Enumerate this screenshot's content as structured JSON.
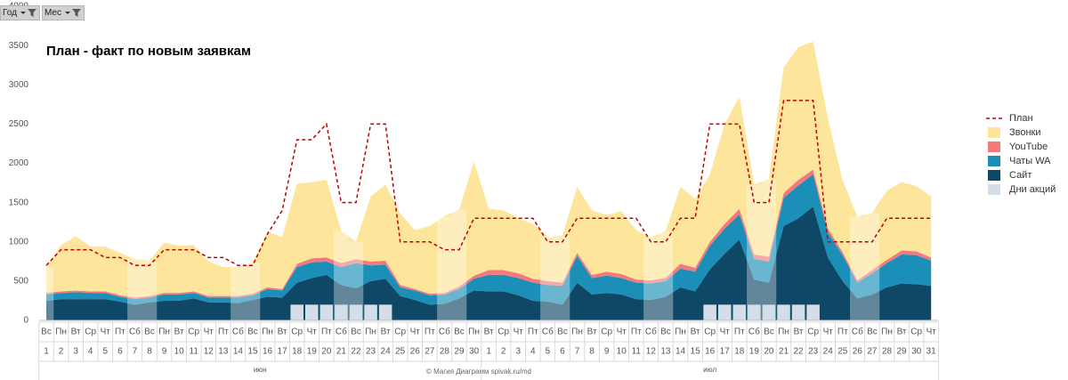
{
  "filters": [
    "Год",
    "Мес"
  ],
  "footer": "© Магия Диаграмм spivak.ru/md",
  "chart_data": {
    "type": "area",
    "title": "План - факт по новым заявкам",
    "months": [
      "июн",
      "июл"
    ],
    "weekdays": [
      "Вс",
      "Пн",
      "Вт",
      "Ср",
      "Чт",
      "Пт",
      "Сб",
      "Вс",
      "Пн",
      "Вт",
      "Ср",
      "Чт",
      "Пт",
      "Сб",
      "Вс",
      "Пн",
      "Вт",
      "Ср",
      "Чт",
      "Пт",
      "Сб",
      "Вс",
      "Пн",
      "Вт",
      "Ср",
      "Чт",
      "Пт",
      "Сб",
      "Вс",
      "Пн",
      "Вт",
      "Ср",
      "Чт",
      "Пт",
      "Сб",
      "Вс",
      "Пн",
      "Вт",
      "Ср",
      "Чт",
      "Пт",
      "Сб",
      "Вс",
      "Пн",
      "Вт",
      "Ср",
      "Чт",
      "Пт",
      "Сб",
      "Вс",
      "Пн",
      "Вт",
      "Ср",
      "Чт",
      "Пт",
      "Сб",
      "Вс",
      "Пн",
      "Вт",
      "Ср",
      "Чт"
    ],
    "categories": [
      "1",
      "2",
      "3",
      "4",
      "5",
      "6",
      "7",
      "8",
      "9",
      "10",
      "11",
      "12",
      "13",
      "14",
      "15",
      "16",
      "17",
      "18",
      "19",
      "20",
      "21",
      "22",
      "23",
      "24",
      "25",
      "26",
      "27",
      "28",
      "29",
      "30",
      "1",
      "2",
      "3",
      "4",
      "5",
      "6",
      "7",
      "8",
      "9",
      "10",
      "11",
      "12",
      "13",
      "14",
      "15",
      "16",
      "17",
      "18",
      "19",
      "20",
      "21",
      "22",
      "23",
      "24",
      "25",
      "26",
      "27",
      "28",
      "29",
      "30",
      "31"
    ],
    "ylim": [
      0,
      4000
    ],
    "yticks": [
      0,
      500,
      1000,
      1500,
      2000,
      2500,
      3000,
      3500,
      4000
    ],
    "series": [
      {
        "name": "План",
        "type": "line",
        "color": "#c00000",
        "values": [
          700,
          900,
          900,
          900,
          800,
          800,
          700,
          700,
          900,
          900,
          900,
          800,
          800,
          700,
          700,
          1100,
          1400,
          2300,
          2300,
          2500,
          1500,
          1500,
          2500,
          2500,
          1000,
          1000,
          1000,
          900,
          900,
          1300,
          1300,
          1300,
          1300,
          1300,
          1000,
          1000,
          1300,
          1300,
          1300,
          1300,
          1300,
          1000,
          1000,
          1300,
          1300,
          2500,
          2500,
          2500,
          1500,
          1500,
          2800,
          2800,
          2800,
          1000,
          1000,
          1000,
          1000,
          1300,
          1300,
          1300,
          1300
        ]
      },
      {
        "name": "Звонки",
        "type": "area",
        "color": "#fde59b",
        "values": [
          330,
          590,
          690,
          570,
          570,
          540,
          490,
          450,
          640,
          600,
          590,
          440,
          370,
          370,
          400,
          710,
          660,
          1020,
          970,
          990,
          410,
          220,
          830,
          970,
          910,
          750,
          860,
          980,
          980,
          1450,
          780,
          760,
          700,
          700,
          560,
          600,
          840,
          820,
          720,
          800,
          630,
          540,
          600,
          980,
          880,
          860,
          1270,
          1430,
          890,
          990,
          1600,
          1690,
          1630,
          1400,
          910,
          810,
          730,
          880,
          870,
          830,
          780
        ]
      },
      {
        "name": "YouTube",
        "type": "area",
        "color": "#f27a7d",
        "values": [
          20,
          20,
          20,
          20,
          20,
          20,
          20,
          20,
          20,
          20,
          20,
          20,
          20,
          20,
          20,
          20,
          20,
          40,
          50,
          50,
          50,
          50,
          50,
          50,
          30,
          20,
          20,
          20,
          30,
          40,
          60,
          60,
          60,
          50,
          50,
          40,
          40,
          40,
          50,
          50,
          40,
          40,
          40,
          60,
          50,
          50,
          60,
          70,
          60,
          60,
          60,
          70,
          60,
          50,
          40,
          30,
          40,
          40,
          50,
          50,
          40
        ]
      },
      {
        "name": "Чаты WA",
        "type": "area",
        "color": "#1b8fb8",
        "values": [
          80,
          80,
          90,
          80,
          80,
          60,
          70,
          60,
          80,
          80,
          70,
          60,
          60,
          70,
          60,
          100,
          90,
          200,
          200,
          170,
          230,
          320,
          200,
          180,
          110,
          120,
          120,
          120,
          120,
          150,
          210,
          210,
          220,
          230,
          210,
          240,
          340,
          210,
          220,
          210,
          210,
          210,
          200,
          240,
          250,
          300,
          320,
          320,
          260,
          270,
          360,
          420,
          410,
          320,
          330,
          200,
          270,
          310,
          370,
          370,
          320
        ]
      },
      {
        "name": "Сайт",
        "type": "area",
        "color": "#0f4866",
        "values": [
          250,
          270,
          270,
          270,
          270,
          240,
          200,
          230,
          250,
          250,
          280,
          230,
          230,
          220,
          260,
          300,
          290,
          480,
          540,
          580,
          450,
          410,
          500,
          530,
          310,
          260,
          200,
          210,
          280,
          380,
          370,
          370,
          320,
          250,
          240,
          200,
          480,
          330,
          350,
          330,
          270,
          260,
          300,
          420,
          370,
          650,
          850,
          1030,
          520,
          480,
          1200,
          1300,
          1450,
          800,
          500,
          280,
          330,
          420,
          470,
          460,
          440
        ]
      },
      {
        "name": "Дни акций",
        "type": "bar",
        "color": "#d5dde6",
        "values": [
          null,
          null,
          null,
          null,
          null,
          null,
          null,
          null,
          null,
          null,
          null,
          null,
          null,
          null,
          null,
          null,
          null,
          200,
          200,
          200,
          200,
          200,
          200,
          200,
          null,
          null,
          null,
          null,
          null,
          null,
          null,
          null,
          null,
          null,
          null,
          null,
          null,
          null,
          null,
          null,
          null,
          null,
          null,
          null,
          null,
          200,
          200,
          200,
          200,
          200,
          200,
          200,
          200,
          null,
          null,
          null,
          null,
          null,
          null,
          null,
          null
        ]
      }
    ]
  }
}
